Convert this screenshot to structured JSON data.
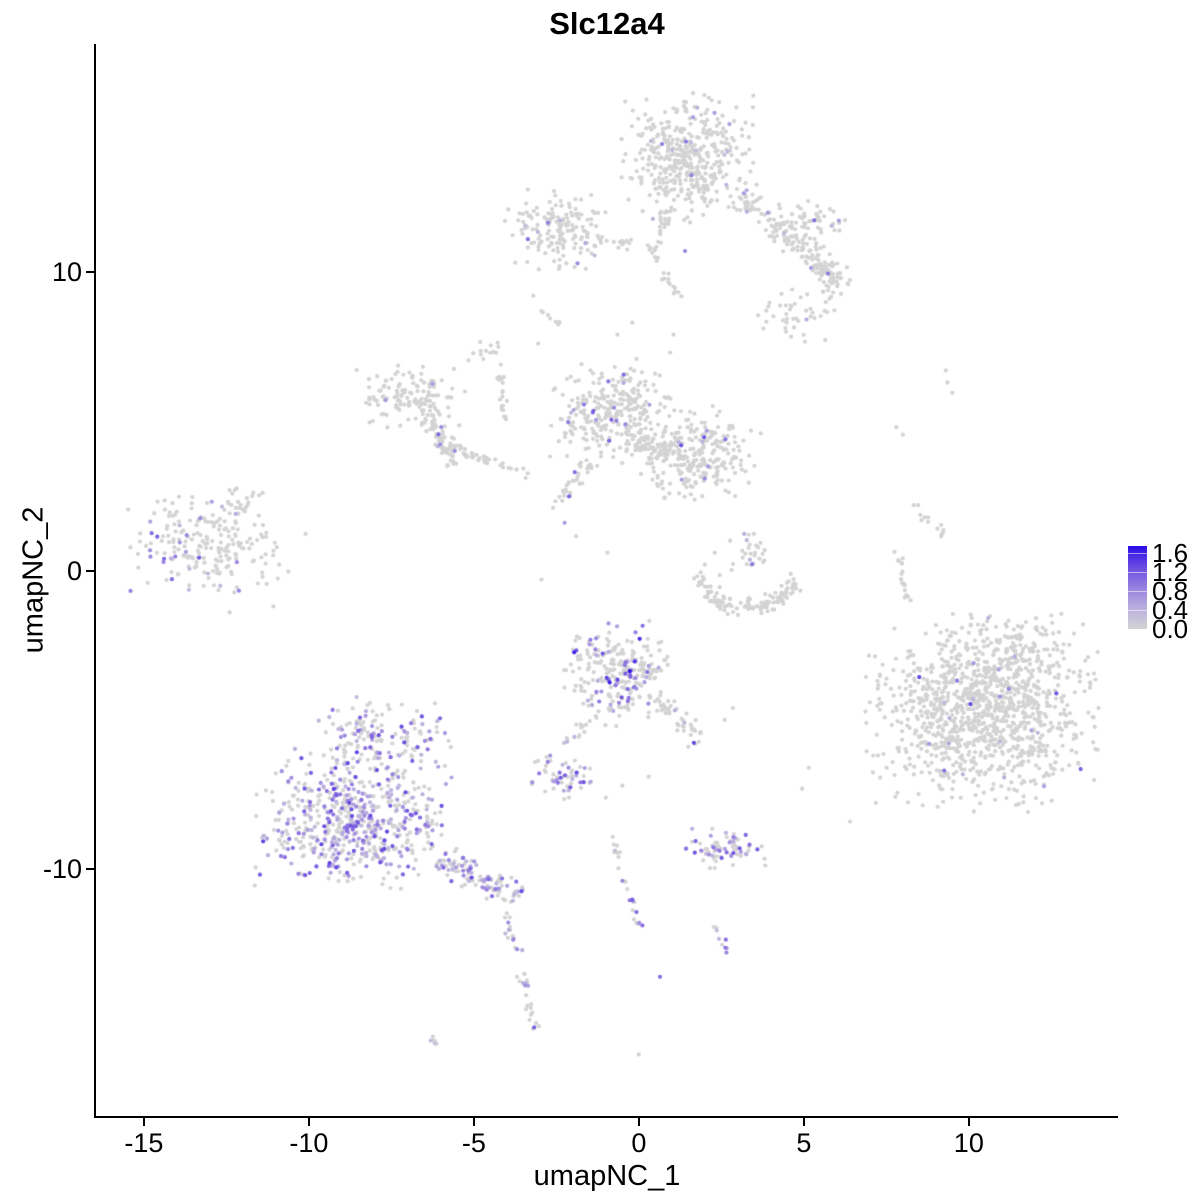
{
  "title": "Slc12a4",
  "axes": {
    "x_label": "umapNC_1",
    "y_label": "umapNC_2",
    "x_ticks": [
      -15,
      -10,
      -5,
      0,
      5,
      10
    ],
    "y_ticks": [
      -10,
      0,
      10
    ],
    "x_range": [
      -16.45,
      14.52
    ],
    "y_range": [
      -18.26,
      17.63
    ]
  },
  "legend": {
    "tick_labels": [
      "1.6",
      "1.2",
      "0.8",
      "0.4",
      "0.0"
    ],
    "tick_values": [
      1.6,
      1.2,
      0.8,
      0.4,
      0.0
    ],
    "bar_max": 1.75
  },
  "colors": {
    "background": "#FFFFFF",
    "axis": "#000000",
    "low": "#D3D3D3",
    "high": "#2B0CE8",
    "gradient": [
      [
        0,
        "#D3D3D3"
      ],
      [
        0.25,
        "#BAB0DE"
      ],
      [
        0.5,
        "#9880E0"
      ],
      [
        0.75,
        "#6A4BE1"
      ],
      [
        1,
        "#2B0CE8"
      ]
    ],
    "domain_max": 1.7
  },
  "chart_data": {
    "type": "scatter",
    "title": "Slc12a4",
    "xlabel": "umapNC_1",
    "ylabel": "umapNC_2",
    "xlim": [
      -16.45,
      14.52
    ],
    "ylim": [
      -18.26,
      17.63
    ],
    "point_radius_px": 2.1,
    "seed": 20240613,
    "clusters": [
      {
        "id": "far-left-main",
        "type": "gauss",
        "cx": -13.4,
        "cy": 0.9,
        "sx": 0.95,
        "sy": 0.8,
        "n": 175,
        "frac": 0.22,
        "emax": 1.15
      },
      {
        "id": "far-left-halo",
        "type": "gauss",
        "cx": -12.0,
        "cy": 0.5,
        "sx": 0.9,
        "sy": 0.8,
        "n": 45,
        "frac": 0.04,
        "emax": 0.8
      },
      {
        "id": "far-left-top-blob",
        "type": "gauss",
        "cx": -11.9,
        "cy": 2.4,
        "sx": 0.3,
        "sy": 0.25,
        "n": 12,
        "frac": 0,
        "emax": 0
      },
      {
        "id": "bottom-left-main",
        "type": "gauss",
        "cx": -8.6,
        "cy": -8.3,
        "sx": 1.35,
        "sy": 1.05,
        "n": 600,
        "frac": 0.42,
        "emax": 1.35
      },
      {
        "id": "bottom-left-upper-lobe",
        "type": "gauss",
        "cx": -7.7,
        "cy": -5.6,
        "sx": 0.95,
        "sy": 0.65,
        "n": 150,
        "frac": 0.35,
        "emax": 1.25
      },
      {
        "id": "bottom-left-tail",
        "type": "strand",
        "x1": -6.1,
        "y1": -9.7,
        "x2": -3.6,
        "y2": -10.9,
        "w": 0.45,
        "n": 110,
        "frac": 0.45,
        "emax": 1.3
      },
      {
        "id": "bottom-strand-1",
        "type": "strand",
        "x1": -4.1,
        "y1": -11.3,
        "x2": -3.6,
        "y2": -13.1,
        "w": 0.16,
        "n": 15,
        "frac": 0.3,
        "emax": 1.2
      },
      {
        "id": "bottom-strand-2",
        "type": "strand",
        "x1": -3.55,
        "y1": -13.3,
        "x2": -3.15,
        "y2": -15.4,
        "w": 0.18,
        "n": 22,
        "frac": 0.45,
        "emax": 1.15
      },
      {
        "id": "bottom-dash",
        "type": "strand",
        "x1": -6.35,
        "y1": -15.6,
        "x2": -6.05,
        "y2": -15.95,
        "w": 0.12,
        "n": 6,
        "frac": 0.25,
        "emax": 0.9
      },
      {
        "id": "center-main",
        "type": "gauss",
        "cx": -0.65,
        "cy": -3.4,
        "sx": 0.75,
        "sy": 0.8,
        "n": 265,
        "frac": 0.17,
        "emax": 1.7
      },
      {
        "id": "center-arm-right",
        "type": "strand",
        "x1": 0.5,
        "y1": -4.3,
        "x2": 1.95,
        "y2": -5.65,
        "w": 0.3,
        "n": 48,
        "frac": 0.12,
        "emax": 1.35
      },
      {
        "id": "center-arm-left",
        "type": "strand",
        "x1": -1.6,
        "y1": -5.1,
        "x2": -2.4,
        "y2": -6.1,
        "w": 0.18,
        "n": 13,
        "frac": 0.08,
        "emax": 0.8
      },
      {
        "id": "dense-purple-blob",
        "type": "gauss",
        "cx": -2.3,
        "cy": -6.9,
        "sx": 0.45,
        "sy": 0.33,
        "n": 58,
        "frac": 0.5,
        "emax": 1.45
      },
      {
        "id": "mid-bottom-strand-a",
        "type": "strand",
        "x1": -0.9,
        "y1": -8.9,
        "x2": -0.35,
        "y2": -10.7,
        "w": 0.16,
        "n": 13,
        "frac": 0.12,
        "emax": 0.9
      },
      {
        "id": "mid-bottom-strand-b",
        "type": "strand",
        "x1": -0.3,
        "y1": -10.8,
        "x2": 0.05,
        "y2": -11.9,
        "w": 0.15,
        "n": 12,
        "frac": 0.55,
        "emax": 1.2
      },
      {
        "id": "bottom-right-cluster",
        "type": "gauss",
        "cx": 2.65,
        "cy": -9.3,
        "sx": 0.55,
        "sy": 0.3,
        "n": 72,
        "frac": 0.38,
        "emax": 1.2
      },
      {
        "id": "bottom-pair-strand",
        "type": "strand",
        "x1": 2.3,
        "y1": -11.9,
        "x2": 2.75,
        "y2": -12.75,
        "w": 0.16,
        "n": 9,
        "frac": 0.5,
        "emax": 1.05
      },
      {
        "id": "right-big",
        "type": "gauss",
        "cx": 10.4,
        "cy": -4.75,
        "sx": 1.55,
        "sy": 1.45,
        "n": 1150,
        "frac": 0.012,
        "emax": 1.4
      },
      {
        "id": "right-big-top",
        "type": "gauss",
        "cx": 11.7,
        "cy": -2.7,
        "sx": 0.65,
        "sy": 0.5,
        "n": 70,
        "frac": 0.015,
        "emax": 1.2
      },
      {
        "id": "right-vert-strand",
        "type": "strand",
        "x1": 7.8,
        "y1": 0.9,
        "x2": 8.15,
        "y2": -1.4,
        "w": 0.13,
        "n": 19,
        "frac": 0,
        "emax": 0
      },
      {
        "id": "right-arc-strand",
        "type": "strand",
        "x1": 8.3,
        "y1": 2.3,
        "x2": 9.3,
        "y2": 1.15,
        "w": 0.18,
        "n": 13,
        "frac": 0,
        "emax": 0
      },
      {
        "id": "top-main",
        "type": "gauss",
        "cx": 1.5,
        "cy": 13.8,
        "sx": 0.9,
        "sy": 0.95,
        "n": 430,
        "frac": 0.022,
        "emax": 1.05
      },
      {
        "id": "top-spur-a",
        "type": "strand",
        "x1": 0.85,
        "y1": 12.1,
        "x2": 0.45,
        "y2": 10.5,
        "w": 0.25,
        "n": 30,
        "frac": 0.03,
        "emax": 0.9
      },
      {
        "id": "top-spur-b",
        "type": "strand",
        "x1": 0.55,
        "y1": 10.4,
        "x2": 1.25,
        "y2": 9.0,
        "w": 0.18,
        "n": 14,
        "frac": 0.06,
        "emax": 0.9
      },
      {
        "id": "top-arm-right",
        "type": "strand",
        "x1": 3.1,
        "y1": 12.6,
        "x2": 6.3,
        "y2": 9.4,
        "w": 0.55,
        "n": 175,
        "frac": 0.02,
        "emax": 0.95
      },
      {
        "id": "top-right-blob",
        "type": "gauss",
        "cx": 5.2,
        "cy": 11.7,
        "sx": 0.6,
        "sy": 0.42,
        "n": 55,
        "frac": 0.04,
        "emax": 1.0
      },
      {
        "id": "mid-right-blob",
        "type": "gauss",
        "cx": 4.8,
        "cy": 8.55,
        "sx": 0.55,
        "sy": 0.45,
        "n": 45,
        "frac": 0.08,
        "emax": 1.1
      },
      {
        "id": "upper-left-cluster",
        "type": "gauss",
        "cx": -2.5,
        "cy": 11.4,
        "sx": 0.68,
        "sy": 0.6,
        "n": 160,
        "frac": 0.05,
        "emax": 1.05
      },
      {
        "id": "upper-left-strand",
        "type": "strand",
        "x1": -1.35,
        "y1": 11.15,
        "x2": -0.25,
        "y2": 10.9,
        "w": 0.16,
        "n": 16,
        "frac": 0,
        "emax": 0
      },
      {
        "id": "upper-left-dash",
        "type": "strand",
        "x1": -2.95,
        "y1": 8.75,
        "x2": -2.45,
        "y2": 8.2,
        "w": 0.13,
        "n": 8,
        "frac": 0,
        "emax": 0
      },
      {
        "id": "mid-left-lobe",
        "type": "gauss",
        "cx": -0.8,
        "cy": 5.3,
        "sx": 0.85,
        "sy": 0.78,
        "n": 295,
        "frac": 0.045,
        "emax": 1.3
      },
      {
        "id": "mid-right-lobe",
        "type": "gauss",
        "cx": 1.75,
        "cy": 3.9,
        "sx": 0.85,
        "sy": 0.7,
        "n": 255,
        "frac": 0.04,
        "emax": 1.45
      },
      {
        "id": "mid-bridge",
        "type": "strand",
        "x1": -0.1,
        "y1": 4.25,
        "x2": 0.95,
        "y2": 4.0,
        "w": 0.32,
        "n": 48,
        "frac": 0.02,
        "emax": 1.0
      },
      {
        "id": "mid-downleft-strand",
        "type": "strand",
        "x1": -1.5,
        "y1": 3.6,
        "x2": -2.45,
        "y2": 2.25,
        "w": 0.22,
        "n": 32,
        "frac": 0.12,
        "emax": 1.25
      },
      {
        "id": "midleft-blob",
        "type": "gauss",
        "cx": -6.9,
        "cy": 5.85,
        "sx": 0.72,
        "sy": 0.5,
        "n": 135,
        "frac": 0.03,
        "emax": 1.0
      },
      {
        "id": "midleft-arm",
        "type": "strand",
        "x1": -6.35,
        "y1": 5.15,
        "x2": -5.5,
        "y2": 3.6,
        "w": 0.32,
        "n": 65,
        "frac": 0.04,
        "emax": 1.1
      },
      {
        "id": "midleft-diag-strand",
        "type": "strand",
        "x1": -5.75,
        "y1": 4.2,
        "x2": -3.4,
        "y2": 3.15,
        "w": 0.22,
        "n": 38,
        "frac": 0.05,
        "emax": 1.2
      },
      {
        "id": "midleft-vert-strand",
        "type": "strand",
        "x1": -4.25,
        "y1": 7.0,
        "x2": -4.0,
        "y2": 4.95,
        "w": 0.13,
        "n": 20,
        "frac": 0.08,
        "emax": 1.0
      },
      {
        "id": "midleft-top-blob",
        "type": "gauss",
        "cx": -4.6,
        "cy": 7.35,
        "sx": 0.27,
        "sy": 0.2,
        "n": 13,
        "frac": 0,
        "emax": 0
      },
      {
        "id": "right-mid-crescent",
        "type": "arc",
        "cx": 3.3,
        "cy": 0.3,
        "r": 1.55,
        "a0": 200,
        "a1": 340,
        "w": 0.3,
        "n": 125,
        "frac": 0,
        "emax": 0
      },
      {
        "id": "right-mid-top-blob",
        "type": "gauss",
        "cx": 3.35,
        "cy": 0.65,
        "sx": 0.3,
        "sy": 0.42,
        "n": 28,
        "frac": 0.05,
        "emax": 1.3
      },
      {
        "id": "misc-points",
        "type": "points",
        "pts": [
          [
            9.3,
            6.7,
            0
          ],
          [
            9.35,
            6.3,
            0
          ],
          [
            9.5,
            5.95,
            0
          ],
          [
            7.8,
            4.8,
            0
          ],
          [
            8.0,
            4.55,
            0
          ],
          [
            4.95,
            -7.3,
            0
          ],
          [
            5.15,
            -6.6,
            0
          ],
          [
            -2.6,
            2.1,
            0
          ],
          [
            -2.25,
            1.6,
            0.6
          ],
          [
            -1.9,
            1.15,
            0
          ],
          [
            -0.95,
            0.6,
            0
          ],
          [
            -2.95,
            -0.3,
            0
          ],
          [
            0.64,
            -13.6,
            1.0
          ],
          [
            1.4,
            10.7,
            0.8
          ],
          [
            -0.2,
            8.3,
            0
          ],
          [
            -0.65,
            7.9,
            0
          ],
          [
            -3.05,
            7.6,
            0
          ],
          [
            -3.2,
            9.2,
            0
          ],
          [
            2.3,
            0.6,
            0
          ],
          [
            2.0,
            0.2,
            0
          ],
          [
            2.45,
            -0.15,
            0
          ],
          [
            1.8,
            -0.5,
            0
          ],
          [
            -1.0,
            -7.6,
            0
          ],
          [
            -0.5,
            -7.2,
            0
          ],
          [
            0.3,
            -6.9,
            0
          ],
          [
            1.5,
            -5.9,
            0
          ],
          [
            2.6,
            -5.0,
            0
          ],
          [
            2.85,
            -4.6,
            0
          ],
          [
            -11.4,
            2.6,
            0
          ],
          [
            6.4,
            -8.4,
            0
          ],
          [
            0.0,
            -16.2,
            0
          ],
          [
            1.05,
            7.9,
            0
          ],
          [
            0.95,
            7.3,
            0
          ],
          [
            -12.4,
            -1.4,
            0
          ],
          [
            -10.9,
            0.2,
            0
          ]
        ]
      }
    ]
  }
}
